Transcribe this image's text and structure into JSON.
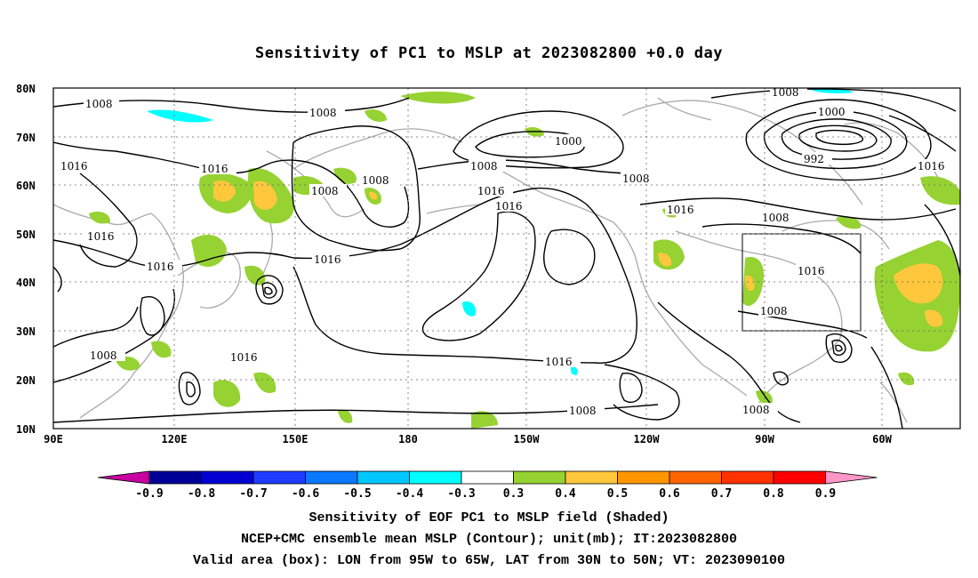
{
  "title": "Sensitivity of PC1 to MSLP at 2023082800 +0.0 day",
  "map": {
    "lat_labels": [
      "80N",
      "70N",
      "60N",
      "50N",
      "40N",
      "30N",
      "20N",
      "10N"
    ],
    "lon_labels": [
      "90E",
      "120E",
      "150E",
      "180",
      "150W",
      "120W",
      "90W",
      "60W"
    ],
    "contour_labels": [
      "1008",
      "1008",
      "1016",
      "1016",
      "1008",
      "1008",
      "1000",
      "1008",
      "1016",
      "1016",
      "1008",
      "1016",
      "1000",
      "992",
      "1016",
      "1008",
      "1016",
      "1008",
      "1016",
      "1016",
      "1016",
      "1016",
      "1008",
      "1008",
      "1016",
      "1008",
      "1008",
      "1008",
      "1008"
    ],
    "box": {
      "lon": [
        "95W",
        "65W"
      ],
      "lat": [
        "30N",
        "50N"
      ]
    }
  },
  "colorbar": {
    "labels": [
      "-0.9",
      "-0.8",
      "-0.7",
      "-0.6",
      "-0.5",
      "-0.4",
      "-0.3",
      "0.3",
      "0.4",
      "0.5",
      "0.6",
      "0.7",
      "0.8",
      "0.9"
    ],
    "colors": [
      "#000096",
      "#0000d2",
      "#1e3cff",
      "#0a78ff",
      "#00c8ff",
      "#00ffff",
      "#ffffff",
      "#96d232",
      "#ffc83c",
      "#ff9600",
      "#ff6400",
      "#ff3200",
      "#ff0000"
    ],
    "under_color": "#c800a0",
    "over_color": "#ff96c8"
  },
  "captions": [
    "Sensitivity of EOF PC1 to MSLP field (Shaded)",
    "NCEP+CMC ensemble mean MSLP (Contour); unit(mb); IT:2023082800",
    "Valid area (box): LON from 95W to 65W, LAT from 30N to 50N; VT: 2023090100"
  ]
}
